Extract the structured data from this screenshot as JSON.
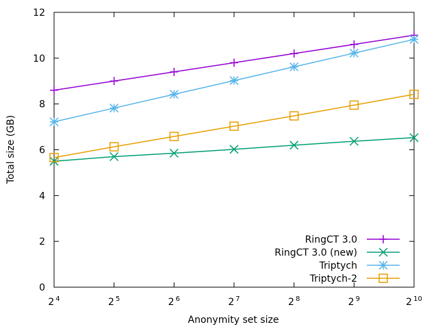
{
  "chart_data": {
    "type": "line",
    "xlabel": "Anonymity set size",
    "ylabel": "Total size (GB)",
    "xscale": "log2",
    "x": [
      16,
      32,
      64,
      128,
      256,
      512,
      1024
    ],
    "xtick_labels": [
      {
        "base": "2",
        "exp": "4"
      },
      {
        "base": "2",
        "exp": "5"
      },
      {
        "base": "2",
        "exp": "6"
      },
      {
        "base": "2",
        "exp": "7"
      },
      {
        "base": "2",
        "exp": "8"
      },
      {
        "base": "2",
        "exp": "9"
      },
      {
        "base": "2",
        "exp": "10"
      }
    ],
    "ylim": [
      0,
      12
    ],
    "yticks": [
      "0",
      "2",
      "4",
      "6",
      "8",
      "10",
      "12"
    ],
    "grid": false,
    "legend_position": "bottom-right",
    "series": [
      {
        "name": "RingCT 3.0",
        "color": "#9400d3",
        "marker": "plus",
        "values": [
          8.6,
          9.0,
          9.4,
          9.8,
          10.2,
          10.6,
          11.0
        ]
      },
      {
        "name": "RingCT 3.0 (new)",
        "color": "#009e73",
        "marker": "cross",
        "values": [
          5.5,
          5.7,
          5.85,
          6.02,
          6.2,
          6.37,
          6.53
        ]
      },
      {
        "name": "Triptych",
        "color": "#56b4e9",
        "marker": "asterisk",
        "values": [
          7.22,
          7.82,
          8.42,
          9.02,
          9.62,
          10.22,
          10.82
        ]
      },
      {
        "name": "Triptych-2",
        "color": "#e69f00",
        "marker": "square",
        "values": [
          5.66,
          6.13,
          6.58,
          7.03,
          7.48,
          7.95,
          8.42
        ]
      }
    ]
  }
}
